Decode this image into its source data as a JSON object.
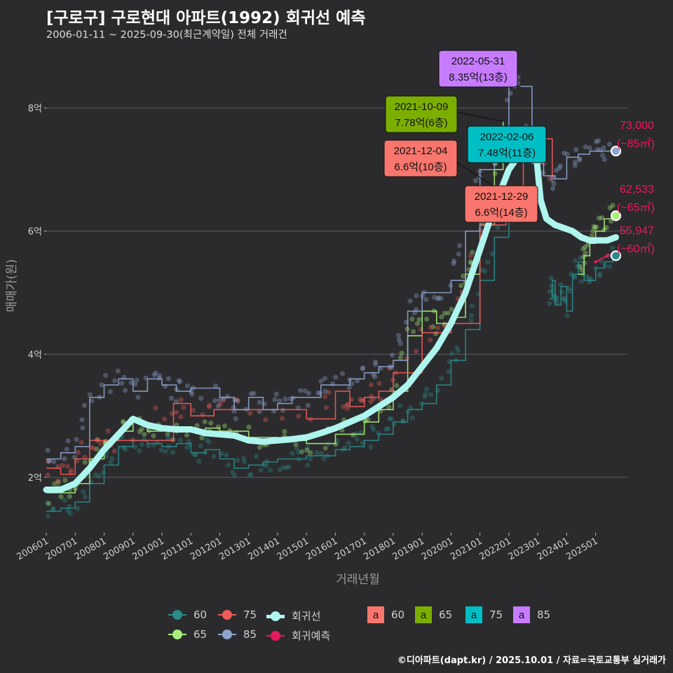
{
  "title": "[구로구] 구로현대 아파트(1992) 회귀선 예측",
  "subtitle": "2006-01-11 ~ 2025-09-30(최근계약일) 전체 거래건",
  "caption": "©디아파트(dapt.kr) / 2025.10.01 / 자료=국토교통부 실거래가",
  "colors": {
    "bg": "#2b2b2d",
    "grid": "#5a5a5c",
    "s60": "#2b8a8a",
    "s65": "#a6f07a",
    "s75": "#f05a5a",
    "s85": "#8fa3cf",
    "trend": "#aef5ee",
    "forecast": "#e8195f",
    "box60": "#f8766d",
    "box65": "#7cae00",
    "box75": "#00bfc4",
    "box85": "#c77cff"
  },
  "chart_data": {
    "type": "line",
    "xlabel": "거래년월",
    "ylabel": "매매가(원)",
    "ylim": [
      1.1,
      8.9
    ],
    "x_range": [
      "2006-01",
      "2025-12"
    ],
    "y_ticks": [
      {
        "value": 2,
        "label": "2억"
      },
      {
        "value": 4,
        "label": "4억"
      },
      {
        "value": 6,
        "label": "6억"
      },
      {
        "value": 8,
        "label": "8억"
      }
    ],
    "x_ticks": [
      "200601",
      "200701",
      "200801",
      "200901",
      "201001",
      "201101",
      "201201",
      "201301",
      "201401",
      "201501",
      "201601",
      "201701",
      "201801",
      "201901",
      "202001",
      "202101",
      "202201",
      "202301",
      "202401",
      "202501"
    ],
    "series": [
      {
        "name": "60",
        "color_key": "s60",
        "x": [
          2006.0,
          2006.5,
          2007.0,
          2007.5,
          2008.0,
          2008.5,
          2009.0,
          2009.5,
          2010.0,
          2010.5,
          2011.0,
          2011.5,
          2012.0,
          2012.5,
          2013.0,
          2013.5,
          2014.0,
          2014.5,
          2015.0,
          2015.5,
          2016.0,
          2016.5,
          2017.0,
          2017.5,
          2018.0,
          2018.5,
          2019.0,
          2019.5,
          2020.0,
          2020.5,
          2021.0,
          2021.5,
          2022.0
        ],
        "y": [
          1.45,
          1.5,
          1.6,
          1.9,
          2.2,
          2.5,
          2.6,
          2.55,
          2.5,
          2.55,
          2.4,
          2.45,
          2.3,
          2.15,
          2.2,
          2.25,
          2.3,
          2.3,
          2.35,
          2.35,
          2.45,
          2.5,
          2.6,
          2.7,
          2.9,
          3.1,
          3.2,
          3.5,
          3.9,
          4.4,
          5.2,
          5.9,
          6.4
        ]
      },
      {
        "name": "60-recent",
        "color_key": "s60",
        "x": [
          2023.4,
          2023.5,
          2023.6,
          2023.8,
          2024.0,
          2024.2,
          2024.4,
          2024.6,
          2025.0,
          2025.3,
          2025.6
        ],
        "y": [
          4.9,
          5.2,
          4.8,
          5.1,
          4.7,
          5.3,
          5.5,
          5.2,
          5.4,
          5.5,
          5.6
        ]
      },
      {
        "name": "65",
        "color_key": "s65",
        "x": [
          2006.0,
          2006.5,
          2007.0,
          2007.5,
          2008.0,
          2008.5,
          2009.0,
          2009.5,
          2010.0,
          2010.5,
          2011.0,
          2011.5,
          2012.0,
          2013.0,
          2014.0,
          2015.0,
          2016.0,
          2017.0,
          2017.5,
          2018.0,
          2018.5,
          2019.0,
          2019.5,
          2020.0,
          2020.5,
          2021.0,
          2021.5,
          2021.8
        ],
        "y": [
          1.75,
          1.75,
          1.9,
          2.3,
          2.6,
          2.75,
          2.9,
          2.75,
          2.8,
          2.75,
          2.75,
          2.8,
          2.75,
          2.65,
          2.6,
          2.55,
          2.7,
          2.9,
          3.1,
          3.4,
          4.3,
          4.7,
          4.5,
          4.6,
          5.3,
          6.1,
          7.0,
          7.78
        ]
      },
      {
        "name": "65-recent",
        "color_key": "s65",
        "x": [
          2024.4,
          2024.6,
          2024.8,
          2025.0,
          2025.3,
          2025.6
        ],
        "y": [
          5.3,
          5.6,
          5.8,
          6.0,
          6.2,
          6.25
        ]
      },
      {
        "name": "75",
        "color_key": "s75",
        "x": [
          2006.0,
          2006.5,
          2007.0,
          2007.5,
          2008.0,
          2008.6,
          2010.4,
          2011.0,
          2011.8,
          2013.0,
          2015.0,
          2016.0,
          2016.5,
          2017.0,
          2017.5,
          2018.0,
          2019.0,
          2020.0,
          2021.0,
          2021.9,
          2022.5,
          2023.5
        ],
        "y": [
          2.15,
          2.05,
          2.3,
          2.6,
          2.6,
          2.6,
          3.2,
          3.0,
          3.1,
          3.1,
          2.95,
          3.4,
          3.15,
          3.3,
          3.4,
          3.7,
          4.35,
          4.5,
          6.1,
          6.6,
          7.5,
          6.85
        ]
      },
      {
        "name": "85",
        "color_key": "s85",
        "x": [
          2006.0,
          2006.5,
          2007.0,
          2007.5,
          2008.0,
          2008.5,
          2009.0,
          2009.5,
          2010.0,
          2010.5,
          2011.0,
          2011.5,
          2012.0,
          2012.5,
          2013.0,
          2013.5,
          2014.0,
          2014.5,
          2015.0,
          2015.5,
          2016.0,
          2016.5,
          2017.0,
          2017.5,
          2018.0,
          2018.5,
          2019.0,
          2019.5,
          2020.0,
          2020.5,
          2021.0,
          2021.5,
          2022.0,
          2022.4,
          2022.8,
          2023.2,
          2023.6,
          2024.0,
          2024.4,
          2024.8,
          2025.2,
          2025.6
        ],
        "y": [
          2.3,
          2.4,
          2.5,
          3.3,
          3.5,
          3.6,
          3.4,
          3.6,
          3.5,
          3.4,
          3.45,
          3.45,
          3.3,
          3.1,
          3.3,
          3.1,
          3.2,
          3.3,
          3.3,
          3.5,
          3.5,
          3.6,
          3.7,
          3.8,
          3.9,
          4.7,
          5.0,
          5.0,
          5.2,
          6.0,
          7.0,
          7.6,
          8.35,
          8.35,
          7.1,
          6.9,
          6.85,
          7.2,
          7.25,
          7.3,
          7.3,
          7.3
        ]
      }
    ],
    "trend": {
      "name": "회귀선",
      "x": [
        2006.0,
        2006.5,
        2007.0,
        2007.5,
        2008.0,
        2008.5,
        2009.0,
        2009.5,
        2010.0,
        2010.5,
        2011.0,
        2011.5,
        2012.0,
        2012.5,
        2013.0,
        2013.5,
        2014.0,
        2014.5,
        2015.0,
        2015.5,
        2016.0,
        2016.5,
        2017.0,
        2017.5,
        2018.0,
        2018.5,
        2019.0,
        2019.5,
        2020.0,
        2020.5,
        2021.0,
        2021.5,
        2022.0,
        2022.3,
        2022.6,
        2022.9,
        2023.1,
        2023.3,
        2023.6,
        2023.9,
        2024.2,
        2024.5,
        2024.8,
        2025.1,
        2025.4,
        2025.7
      ],
      "y": [
        1.8,
        1.8,
        1.9,
        2.15,
        2.45,
        2.7,
        2.95,
        2.85,
        2.8,
        2.78,
        2.78,
        2.72,
        2.7,
        2.68,
        2.6,
        2.58,
        2.6,
        2.62,
        2.65,
        2.72,
        2.8,
        2.9,
        3.0,
        3.15,
        3.3,
        3.5,
        3.8,
        4.1,
        4.5,
        5.0,
        5.7,
        6.4,
        7.0,
        7.2,
        7.3,
        7.45,
        6.5,
        6.2,
        6.1,
        6.05,
        6.0,
        5.9,
        5.85,
        5.85,
        5.85,
        5.9
      ]
    },
    "forecast": {
      "name": "회귀예측",
      "x": [
        2025.0,
        2025.4,
        2025.7
      ],
      "y": [
        5.5,
        5.6,
        5.65
      ]
    },
    "endpoints": [
      {
        "series": "85",
        "x": 2025.7,
        "y": 7.3,
        "price": "73,000",
        "area": "(~85㎡)"
      },
      {
        "series": "65",
        "x": 2025.7,
        "y": 6.25,
        "price": "62,533",
        "area": "(~65㎡)"
      },
      {
        "series": "60",
        "x": 2025.7,
        "y": 5.6,
        "price": "55,947",
        "area": "(~60㎡)"
      }
    ],
    "annotations": [
      {
        "date": "2022-05-31",
        "text": "8.35억(13층)",
        "box": "box85",
        "x": 2022.4,
        "y": 8.35
      },
      {
        "date": "2021-10-09",
        "text": "7.78억(6층)",
        "box": "box65",
        "x": 2021.8,
        "y": 7.78
      },
      {
        "date": "2022-02-06",
        "text": "7.48억(11층)",
        "box": "box75",
        "x": 2022.1,
        "y": 7.48
      },
      {
        "date": "2021-12-04",
        "text": "6.6억(10층)",
        "box": "box60",
        "x": 2021.9,
        "y": 6.6
      },
      {
        "date": "2021-12-29",
        "text": "6.6억(14층)",
        "box": "box60",
        "x": 2022.0,
        "y": 6.6
      }
    ]
  },
  "legend": {
    "line_items": [
      {
        "label": "60",
        "color_key": "s60"
      },
      {
        "label": "75",
        "color_key": "s75"
      },
      {
        "label": "회귀선",
        "color_key": "trend"
      },
      {
        "label": "65",
        "color_key": "s65"
      },
      {
        "label": "85",
        "color_key": "s85"
      },
      {
        "label": "회귀예측",
        "color_key": "forecast"
      }
    ],
    "box_items": [
      {
        "glyph": "a",
        "label": "60",
        "color_key": "box60"
      },
      {
        "glyph": "a",
        "label": "65",
        "color_key": "box65"
      },
      {
        "glyph": "a",
        "label": "75",
        "color_key": "box75"
      },
      {
        "glyph": "a",
        "label": "85",
        "color_key": "box85"
      }
    ]
  }
}
